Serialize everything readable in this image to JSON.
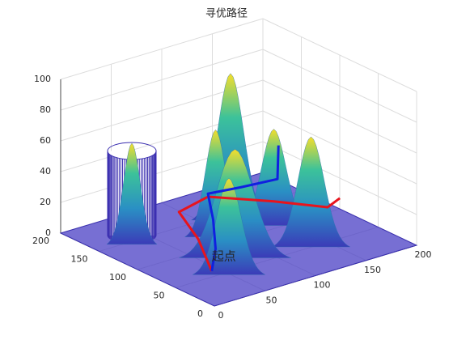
{
  "chart_data": {
    "type": "surface3d",
    "title": "寻优路径",
    "xlim": [
      0,
      200
    ],
    "ylim": [
      0,
      200
    ],
    "zlim": [
      0,
      100
    ],
    "xticks": [
      0,
      50,
      100,
      150,
      200
    ],
    "yticks": [
      0,
      50,
      100,
      150,
      200
    ],
    "zticks": [
      0,
      20,
      40,
      60,
      80,
      100
    ],
    "grid": true,
    "peaks": [
      {
        "x": 130,
        "y": 150,
        "z": 90,
        "sigma": 14
      },
      {
        "x": 40,
        "y": 160,
        "z": 60,
        "sigma": 9
      },
      {
        "x": 100,
        "y": 130,
        "z": 64,
        "sigma": 11
      },
      {
        "x": 150,
        "y": 120,
        "z": 57,
        "sigma": 13
      },
      {
        "x": 145,
        "y": 65,
        "z": 66,
        "sigma": 14
      },
      {
        "x": 85,
        "y": 85,
        "z": 65,
        "sigma": 20
      },
      {
        "x": 60,
        "y": 60,
        "z": 57,
        "sigma": 13
      }
    ],
    "obstacle": {
      "x": 40,
      "y": 160,
      "r": 25,
      "h": 55,
      "color": "#3b2fb0"
    },
    "series": [
      {
        "color": "#e8141c",
        "x": [
          43,
          60,
          79,
          116,
          150,
          175,
          194
        ],
        "y": [
          60,
          100,
          150,
          161,
          120,
          83,
          92
        ],
        "z": [
          0,
          8,
          10,
          10,
          10,
          10,
          10
        ]
      },
      {
        "color": "#1020e0",
        "x": [
          43,
          62,
          90,
          116,
          140,
          165,
          185
        ],
        "y": [
          60,
          80,
          120,
          161,
          150,
          135,
          160
        ],
        "z": [
          0,
          6,
          10,
          12,
          14,
          18,
          30
        ]
      }
    ],
    "annotations": [
      {
        "text": "起点",
        "series": 0,
        "index": 0
      }
    ]
  }
}
